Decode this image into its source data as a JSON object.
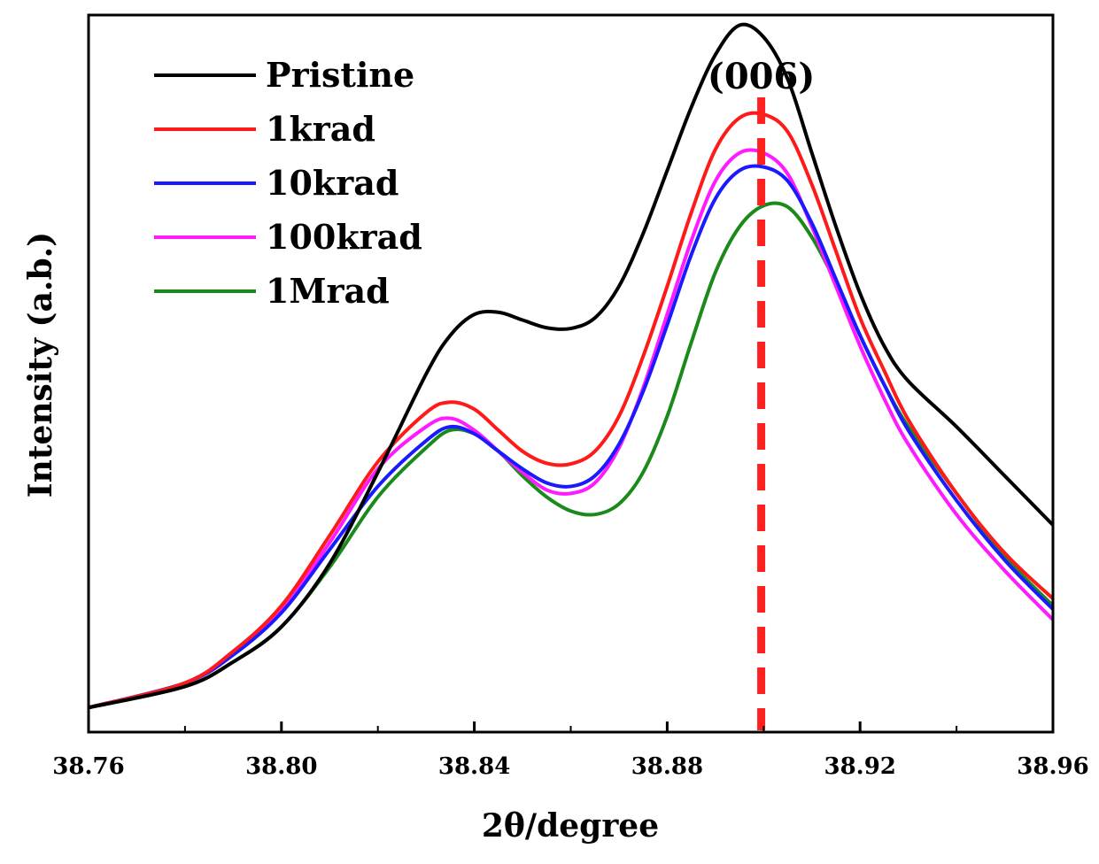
{
  "chart_data": {
    "type": "line",
    "title": "",
    "xlabel": "2θ/degree",
    "ylabel": "Intensity (a.b.)",
    "xlim": [
      38.76,
      38.96
    ],
    "ylim": [
      0,
      100
    ],
    "xticks": [
      38.76,
      38.8,
      38.84,
      38.88,
      38.92,
      38.96
    ],
    "xtick_labels": [
      "38.76",
      "38.80",
      "38.84",
      "38.88",
      "38.92",
      "38.96"
    ],
    "yticks_visible": false,
    "grid": false,
    "legend_position": "top-left",
    "annotation": {
      "label": "(006)",
      "x": 38.8995,
      "style": "dashed",
      "color": "#ff2020"
    },
    "series": [
      {
        "name": "Pristine",
        "color": "#000000",
        "x": [
          38.76,
          38.78,
          38.79,
          38.8,
          38.81,
          38.82,
          38.83,
          38.835,
          38.84,
          38.845,
          38.85,
          38.855,
          38.86,
          38.865,
          38.87,
          38.875,
          38.88,
          38.885,
          38.89,
          38.895,
          38.9,
          38.905,
          38.91,
          38.915,
          38.92,
          38.925,
          38.93,
          38.94,
          38.95,
          38.96
        ],
        "y": [
          3.5,
          6.5,
          10.0,
          15.0,
          24.0,
          37.0,
          51.0,
          56.5,
          59.5,
          59.8,
          58.7,
          57.6,
          57.5,
          59.0,
          63.5,
          71.0,
          80.0,
          89.0,
          96.5,
          100.7,
          99.0,
          93.0,
          82.5,
          72.0,
          62.5,
          55.0,
          50.0,
          43.5,
          36.5,
          29.5
        ]
      },
      {
        "name": "1krad",
        "color": "#ff1a1a",
        "x": [
          38.76,
          38.78,
          38.79,
          38.8,
          38.81,
          38.82,
          38.83,
          38.835,
          38.84,
          38.845,
          38.85,
          38.855,
          38.86,
          38.865,
          38.87,
          38.875,
          38.88,
          38.885,
          38.89,
          38.895,
          38.9,
          38.905,
          38.91,
          38.915,
          38.92,
          38.925,
          38.93,
          38.94,
          38.95,
          38.96
        ],
        "y": [
          3.5,
          7.0,
          11.5,
          18.0,
          28.0,
          38.5,
          45.5,
          47.0,
          46.0,
          43.0,
          40.0,
          38.3,
          38.2,
          40.0,
          45.0,
          53.5,
          63.5,
          74.0,
          83.0,
          87.5,
          88.0,
          85.5,
          78.0,
          68.5,
          59.0,
          51.5,
          44.5,
          34.0,
          25.5,
          19.0
        ]
      },
      {
        "name": "10krad",
        "color": "#1a1aff",
        "x": [
          38.76,
          38.78,
          38.79,
          38.8,
          38.81,
          38.82,
          38.83,
          38.835,
          38.84,
          38.845,
          38.85,
          38.855,
          38.86,
          38.865,
          38.87,
          38.875,
          38.88,
          38.885,
          38.89,
          38.895,
          38.9,
          38.905,
          38.91,
          38.915,
          38.92,
          38.925,
          38.93,
          38.94,
          38.95,
          38.96
        ],
        "y": [
          3.5,
          7.0,
          11.0,
          17.0,
          26.0,
          35.0,
          41.5,
          43.5,
          42.5,
          40.0,
          37.5,
          35.5,
          35.0,
          36.5,
          41.0,
          48.5,
          58.0,
          68.0,
          76.0,
          80.0,
          80.5,
          78.5,
          72.5,
          64.5,
          56.5,
          49.5,
          43.0,
          33.0,
          24.5,
          17.5
        ]
      },
      {
        "name": "100krad",
        "color": "#ff1aff",
        "x": [
          38.76,
          38.78,
          38.79,
          38.8,
          38.81,
          38.82,
          38.83,
          38.835,
          38.84,
          38.845,
          38.85,
          38.855,
          38.86,
          38.865,
          38.87,
          38.875,
          38.88,
          38.885,
          38.89,
          38.895,
          38.9,
          38.905,
          38.91,
          38.915,
          38.92,
          38.925,
          38.93,
          38.94,
          38.95,
          38.96
        ],
        "y": [
          3.5,
          7.0,
          11.5,
          17.5,
          27.0,
          37.5,
          43.5,
          44.7,
          43.0,
          40.0,
          37.0,
          34.5,
          34.0,
          35.5,
          40.5,
          49.0,
          59.5,
          70.0,
          78.5,
          82.5,
          82.5,
          79.5,
          72.0,
          63.5,
          55.0,
          47.5,
          41.0,
          31.0,
          23.0,
          16.0
        ]
      },
      {
        "name": "1Mrad",
        "color": "#1a8a1a",
        "x": [
          38.76,
          38.78,
          38.79,
          38.8,
          38.81,
          38.82,
          38.83,
          38.835,
          38.84,
          38.845,
          38.85,
          38.855,
          38.86,
          38.865,
          38.87,
          38.875,
          38.88,
          38.885,
          38.89,
          38.895,
          38.9,
          38.905,
          38.91,
          38.915,
          38.92,
          38.925,
          38.93,
          38.94,
          38.95,
          38.96
        ],
        "y": [
          3.5,
          6.5,
          10.0,
          15.0,
          23.5,
          33.5,
          40.5,
          43.0,
          42.5,
          40.0,
          36.5,
          33.5,
          31.5,
          31.0,
          32.5,
          37.0,
          45.0,
          55.5,
          65.5,
          72.0,
          75.0,
          74.8,
          70.5,
          64.0,
          56.5,
          49.5,
          43.5,
          34.0,
          25.0,
          18.0
        ]
      }
    ]
  }
}
